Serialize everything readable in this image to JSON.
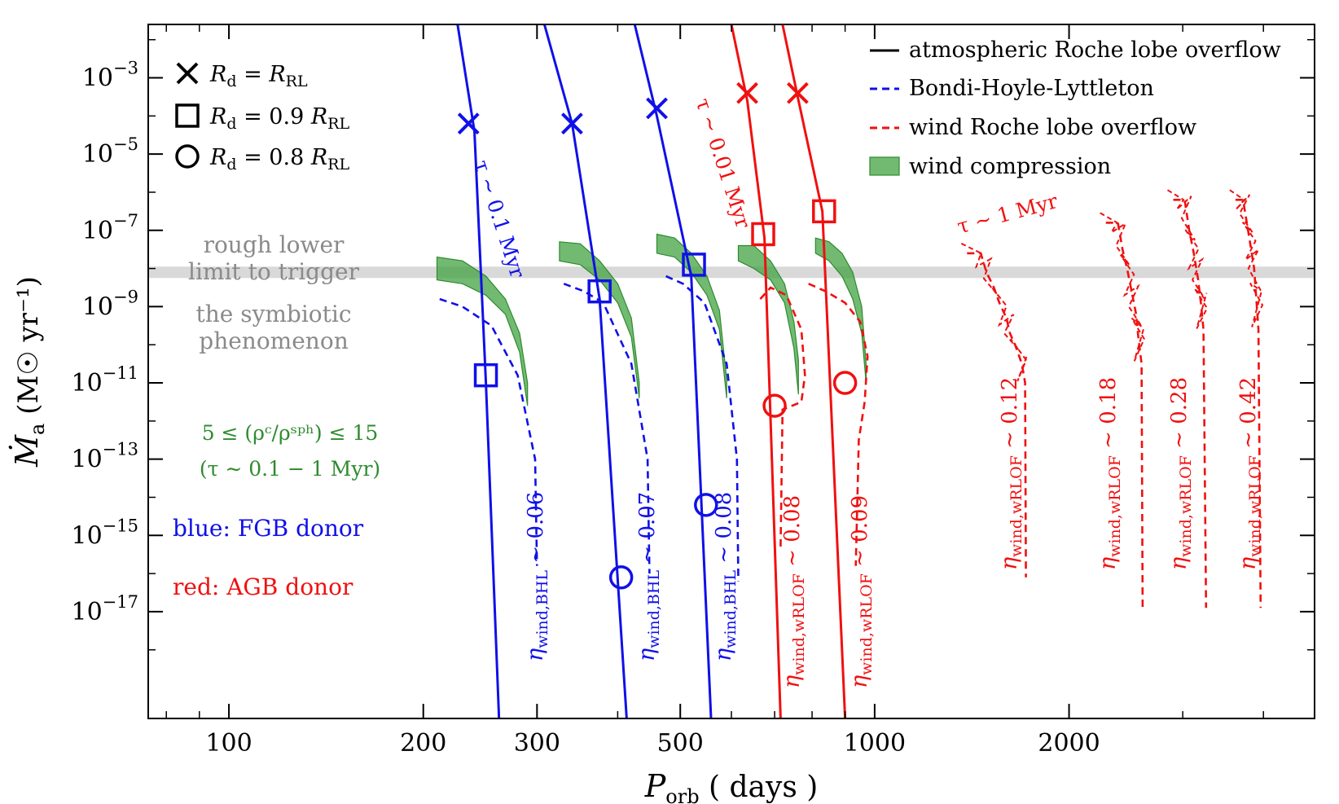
{
  "chart_data": {
    "type": "line",
    "xlabel": {
      "symbol": "P",
      "sub": "orb",
      "rest": "( days )"
    },
    "ylabel": {
      "symbol": "Ṁ",
      "sub": "a",
      "rest": "(M☉ yr⁻¹)"
    },
    "x_scale": "log",
    "y_scale": "log",
    "xlim": [
      75,
      4800
    ],
    "ylim": [
      -19.8,
      -1.6
    ],
    "x_ticks": [
      {
        "v": 100,
        "label": "100"
      },
      {
        "v": 200,
        "label": "200"
      },
      {
        "v": 300,
        "label": "300"
      },
      {
        "v": 500,
        "label": "500"
      },
      {
        "v": 1000,
        "label": "1000"
      },
      {
        "v": 2000,
        "label": "2000"
      }
    ],
    "x_minor": [
      80,
      90,
      400,
      600,
      700,
      800,
      900,
      3000,
      4000
    ],
    "y_ticks": [
      {
        "v": -3,
        "mant": "10",
        "exp": "−3"
      },
      {
        "v": -5,
        "mant": "10",
        "exp": "−5"
      },
      {
        "v": -7,
        "mant": "10",
        "exp": "−7"
      },
      {
        "v": -9,
        "mant": "10",
        "exp": "−9"
      },
      {
        "v": -11,
        "mant": "10",
        "exp": "−11"
      },
      {
        "v": -13,
        "mant": "10",
        "exp": "−13"
      },
      {
        "v": -15,
        "mant": "10",
        "exp": "−15"
      },
      {
        "v": -17,
        "mant": "10",
        "exp": "−17"
      }
    ],
    "legend_position": "top-right",
    "legend": [
      {
        "label": "atmospheric Roche lobe overflow",
        "style": "solid"
      },
      {
        "label": "Bondi-Hoyle-Lyttleton",
        "style": "dashed-blue"
      },
      {
        "label": "wind Roche lobe overflow",
        "style": "dashed-red"
      },
      {
        "label": "wind compression",
        "style": "band"
      }
    ],
    "marker_legend": [
      {
        "marker": "x",
        "lhs": "R",
        "lhs_sub": "d",
        "rhs": "= R",
        "rhs_sub": "RL"
      },
      {
        "marker": "square",
        "lhs": "R",
        "lhs_sub": "d",
        "rhs": "= 0.9 R",
        "rhs_sub": "RL"
      },
      {
        "marker": "circle",
        "lhs": "R",
        "lhs_sub": "d",
        "rhs": "= 0.8 R",
        "rhs_sub": "RL"
      }
    ],
    "threshold": {
      "y": -8.1,
      "lines": [
        "rough lower",
        "limit to trigger",
        "the symbiotic",
        "phenomenon"
      ]
    },
    "annotations": {
      "compression_range": "5 ≤ (ρᶜ/ρˢᵖʰ) ≤ 15",
      "compression_tau": "(τ ∼ 0.1 − 1 Myr)",
      "blue_note": "blue:  FGB donor",
      "red_note": "red:  AGB donor",
      "tau_blue": "τ ∼ 0.1 Myr",
      "tau_red_rlof": "τ ∼ 0.01 Myr",
      "tau_red_wind": "τ ∼ 1 Myr"
    },
    "rlof_series": [
      {
        "color": "blue",
        "x": [
          226,
          240,
          250,
          262
        ],
        "y": [
          -1.6,
          -4.4,
          -11,
          -19.8
        ],
        "x_marker": [
          235,
          -4.2
        ],
        "sq_marker": [
          250,
          -10.8
        ],
        "circle_marker": null
      },
      {
        "color": "blue",
        "x": [
          308,
          340,
          375,
          413
        ],
        "y": [
          -1.6,
          -4.2,
          -8.8,
          -19.8
        ],
        "x_marker": [
          340,
          -4.2
        ],
        "sq_marker": [
          375,
          -8.6
        ],
        "circle_marker": [
          405,
          -16.1
        ]
      },
      {
        "color": "blue",
        "x": [
          425,
          460,
          520,
          558
        ],
        "y": [
          -1.6,
          -4.0,
          -8.2,
          -19.8
        ],
        "x_marker": [
          460,
          -3.8
        ],
        "sq_marker": [
          525,
          -7.9
        ],
        "circle_marker": [
          548,
          -14.2
        ]
      },
      {
        "color": "red",
        "x": [
          600,
          635,
          675,
          715
        ],
        "y": [
          -1.6,
          -3.6,
          -7.2,
          -19.8
        ],
        "x_marker": [
          635,
          -3.4
        ],
        "sq_marker": [
          672,
          -7.1
        ],
        "circle_marker": [
          700,
          -11.6
        ]
      },
      {
        "color": "red",
        "x": [
          720,
          760,
          830,
          900
        ],
        "y": [
          -1.6,
          -3.5,
          -6.5,
          -19.8
        ],
        "x_marker": [
          760,
          -3.4
        ],
        "sq_marker": [
          835,
          -6.5
        ],
        "circle_marker": [
          900,
          -11
        ]
      }
    ],
    "bhl_series": [
      {
        "label": "η_wind,BHL ∼ 0.06",
        "sym": "η",
        "sub": "wind,BHL",
        "val": "∼ 0.06",
        "x": [
          212,
          230,
          255,
          280,
          298,
          300
        ],
        "y": [
          -8.8,
          -9.0,
          -9.5,
          -10.8,
          -13,
          -15.8
        ]
      },
      {
        "label": "η_wind,BHL ∼ 0.07",
        "sym": "η",
        "sub": "wind,BHL",
        "val": "∼ 0.07",
        "x": [
          330,
          355,
          380,
          420,
          445,
          448
        ],
        "y": [
          -8.4,
          -8.6,
          -8.9,
          -10.5,
          -13,
          -16
        ]
      },
      {
        "label": "η_wind,BHL ∼ 0.08",
        "sym": "η",
        "sub": "wind,BHL",
        "val": "∼ 0.08",
        "x": [
          475,
          505,
          545,
          590,
          612,
          615
        ],
        "y": [
          -8.2,
          -8.4,
          -8.9,
          -10.5,
          -13,
          -16.2
        ]
      }
    ],
    "wrlof_series": [
      {
        "label": "η_wind,wRLOF ∼ 0.08",
        "sym": "η",
        "sub": "wind,wRLOF",
        "val": "∼ 0.08",
        "x": [
          665,
          690,
          730,
          770,
          780,
          770,
          720,
          715
        ],
        "y": [
          -8.8,
          -8.5,
          -8.7,
          -9.6,
          -10.8,
          -11.5,
          -11.7,
          -15.3
        ]
      },
      {
        "label": "η_wind,wRLOF ∼ 0.09",
        "sym": "η",
        "sub": "wind,wRLOF",
        "val": "∼ 0.09",
        "x": [
          790,
          840,
          900,
          950,
          975,
          965,
          945,
          935
        ],
        "y": [
          -8.4,
          -8.6,
          -8.9,
          -9.4,
          -10.3,
          -11.5,
          -12.5,
          -15.8
        ]
      },
      {
        "label": "η_wind,wRLOF ∼ 0.12",
        "sym": "η",
        "sub": "wind,wRLOF",
        "val": "∼ 0.12",
        "x": [
          1390,
          1460,
          1490,
          1530,
          1560,
          1600,
          1620,
          1650,
          1690,
          1710,
          1715
        ],
        "y": [
          -7.6,
          -7.6,
          -8.1,
          -8.5,
          -8.9,
          -9.3,
          -9.7,
          -10.0,
          -10.5,
          -11,
          -16.1
        ]
      },
      {
        "label": "η_wind,wRLOF ∼ 0.18",
        "sym": "η",
        "sub": "wind,wRLOF",
        "val": "∼ 0.18",
        "x": [
          2280,
          2380,
          2420,
          2460,
          2500,
          2540,
          2560,
          2590,
          2600
        ],
        "y": [
          -6.8,
          -6.8,
          -7.5,
          -8.0,
          -8.6,
          -9.2,
          -9.8,
          -10.5,
          -16.9
        ]
      },
      {
        "label": "η_wind,wRLOF ∼ 0.28",
        "sym": "η",
        "sub": "wind,wRLOF",
        "val": "∼ 0.28",
        "x": [
          2900,
          3020,
          3070,
          3120,
          3170,
          3200,
          3230,
          3260
        ],
        "y": [
          -6.2,
          -6.2,
          -7.0,
          -7.6,
          -8.3,
          -8.9,
          -9.6,
          -16.9
        ]
      },
      {
        "label": "η_wind,wRLOF ∼ 0.42",
        "sym": "η",
        "sub": "wind,wRLOF",
        "val": "∼ 0.42",
        "x": [
          3620,
          3720,
          3770,
          3820,
          3870,
          3900,
          3930,
          3960
        ],
        "y": [
          -6.2,
          -6.2,
          -6.8,
          -7.4,
          -8.0,
          -8.8,
          -9.6,
          -16.9
        ]
      }
    ],
    "compression_bands": [
      {
        "x": [
          210,
          230,
          250,
          268,
          282,
          290
        ],
        "top": [
          -7.7,
          -7.8,
          -8.2,
          -8.8,
          -9.7,
          -11
        ],
        "bottom": [
          -8.3,
          -8.4,
          -8.7,
          -9.2,
          -10.2,
          -11.6
        ]
      },
      {
        "x": [
          325,
          350,
          375,
          400,
          420,
          432
        ],
        "top": [
          -7.3,
          -7.35,
          -7.8,
          -8.4,
          -9.3,
          -11
        ],
        "bottom": [
          -7.8,
          -7.9,
          -8.3,
          -8.9,
          -9.8,
          -11.4
        ]
      },
      {
        "x": [
          460,
          490,
          520,
          550,
          575,
          590
        ],
        "top": [
          -7.1,
          -7.2,
          -7.6,
          -8.2,
          -9.1,
          -10.9
        ],
        "bottom": [
          -7.6,
          -7.7,
          -8.1,
          -8.7,
          -9.6,
          -11.4
        ]
      },
      {
        "x": [
          615,
          650,
          690,
          725,
          750,
          762
        ],
        "top": [
          -7.4,
          -7.4,
          -7.8,
          -8.4,
          -9.4,
          -10.4
        ],
        "bottom": [
          -7.8,
          -8.0,
          -8.3,
          -8.9,
          -10.1,
          -11.3
        ]
      },
      {
        "x": [
          810,
          850,
          890,
          925,
          955,
          970
        ],
        "top": [
          -7.2,
          -7.3,
          -7.6,
          -8.1,
          -9.0,
          -10.5
        ],
        "bottom": [
          -7.6,
          -7.8,
          -8.2,
          -8.8,
          -9.7,
          -11.0
        ]
      }
    ]
  }
}
